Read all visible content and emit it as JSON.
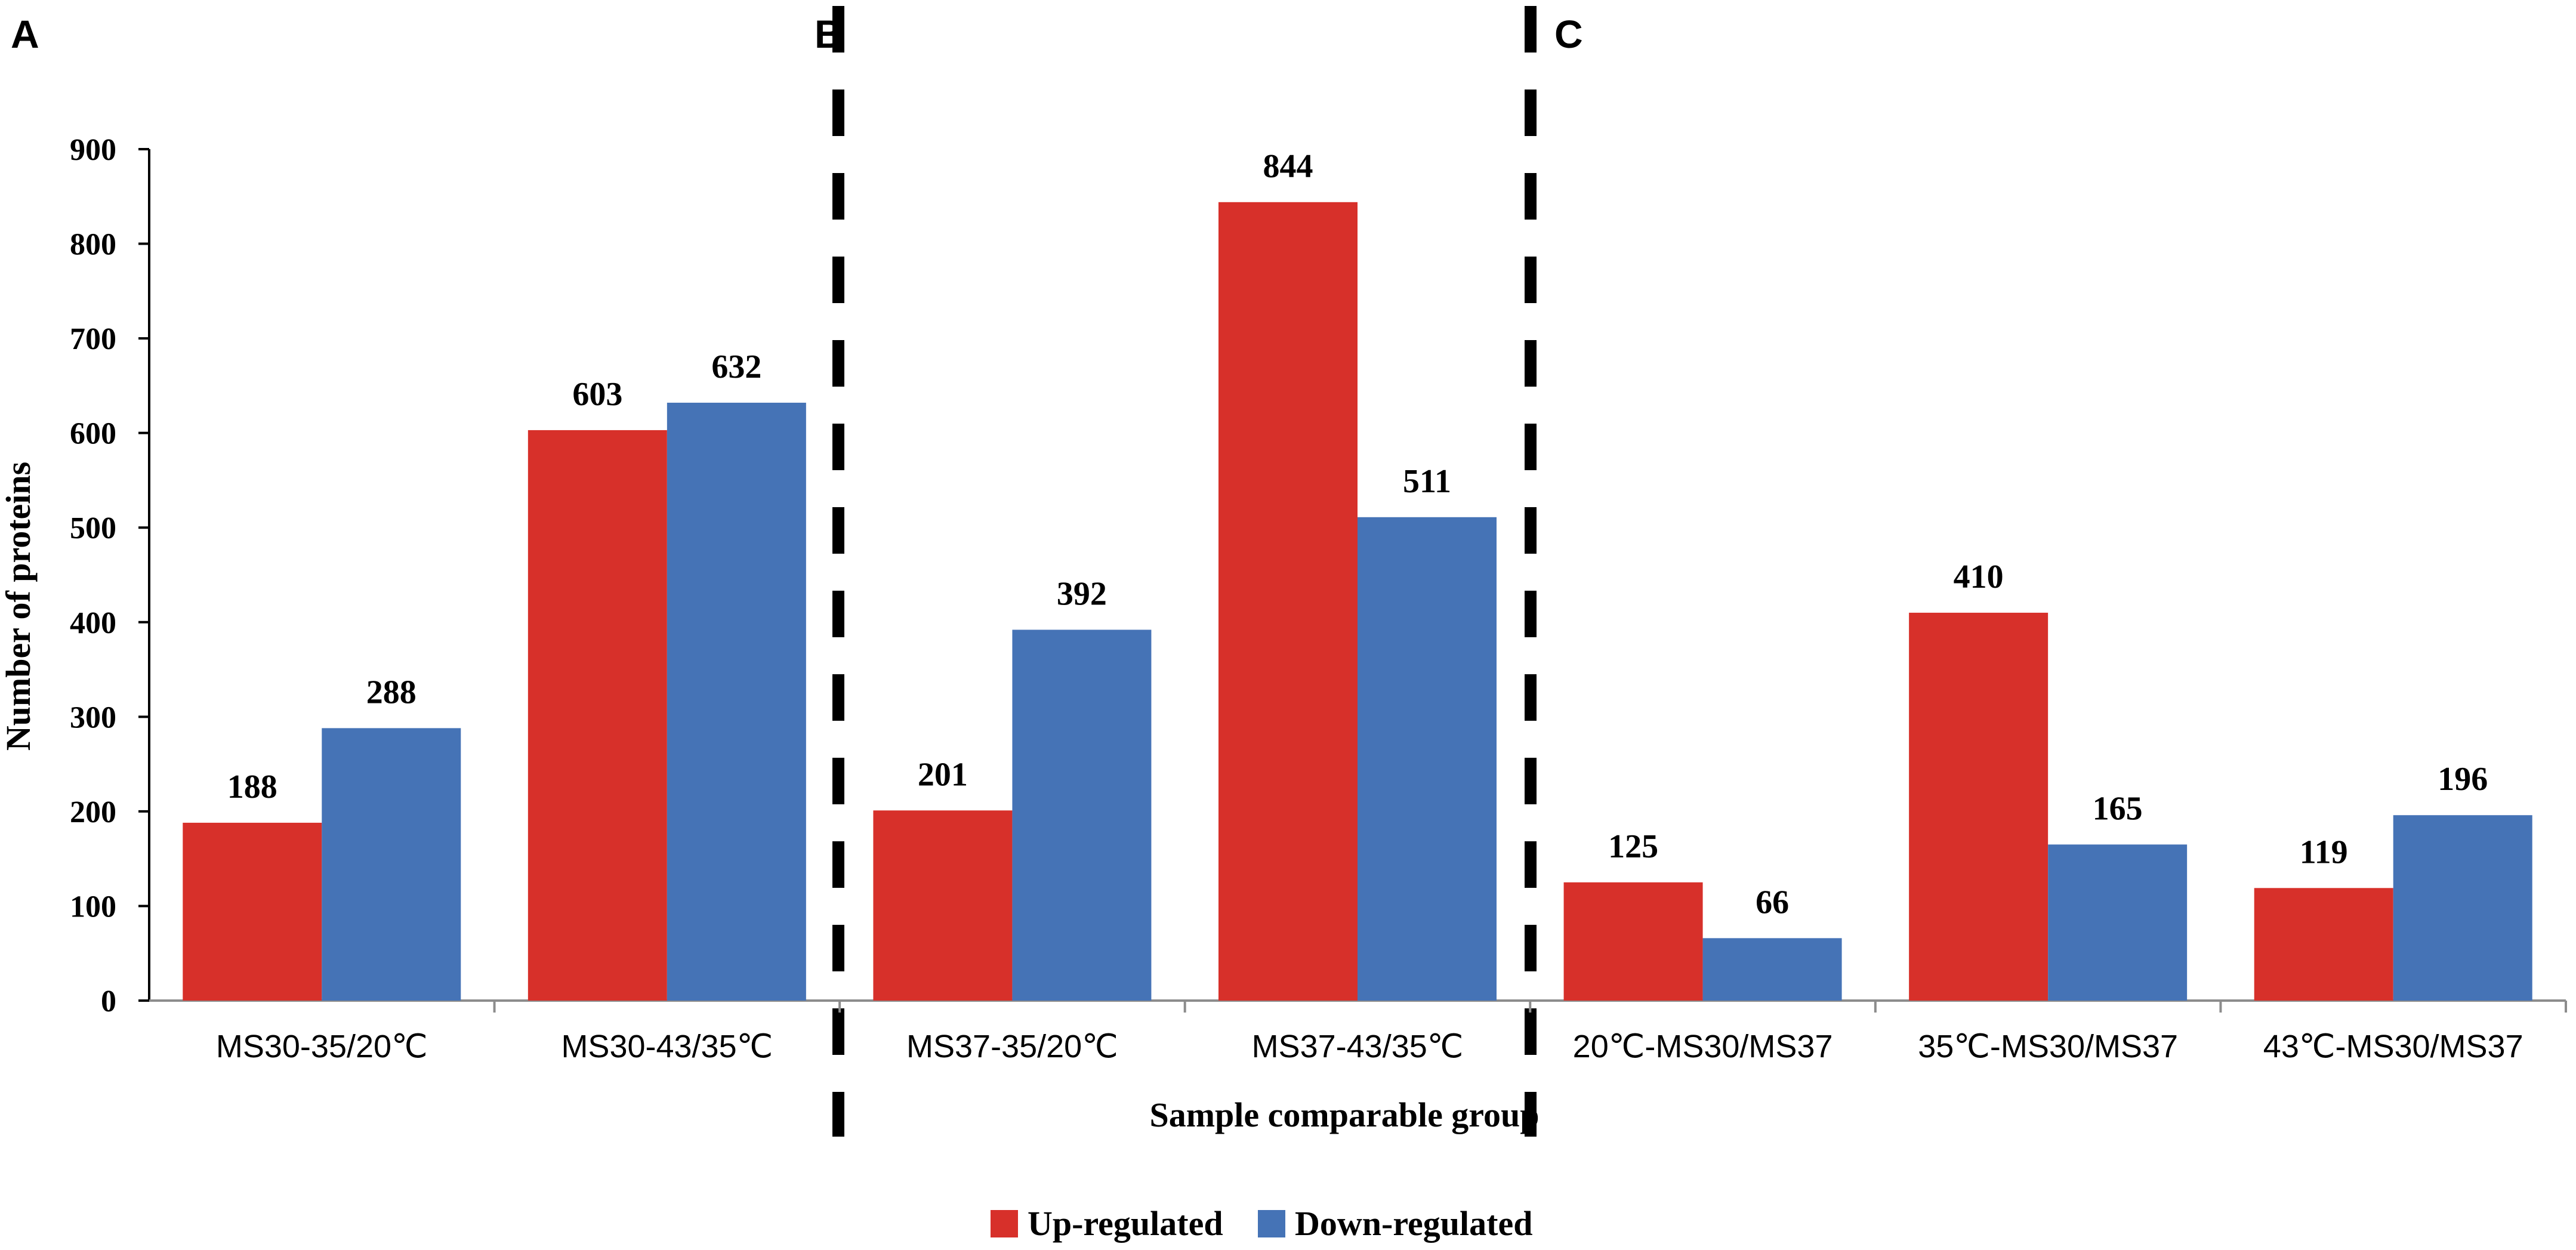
{
  "panels": [
    "A",
    "B",
    "C"
  ],
  "chart_data": {
    "type": "bar",
    "categories": [
      "MS30-35/20℃",
      "MS30-43/35℃",
      "MS37-35/20℃",
      "MS37-43/35℃",
      "20℃-MS30/MS37",
      "35℃-MS30/MS37",
      "43℃-MS30/MS37"
    ],
    "series": [
      {
        "name": "Up-regulated",
        "color": "#d7302a",
        "values": [
          188,
          603,
          201,
          844,
          125,
          410,
          119
        ]
      },
      {
        "name": "Down-regulated",
        "color": "#4573b6",
        "values": [
          288,
          632,
          392,
          511,
          66,
          165,
          196
        ]
      }
    ],
    "xlabel": "Sample comparable group",
    "ylabel": "Number of proteins",
    "ylim": [
      0,
      900
    ],
    "yticks": [
      0,
      100,
      200,
      300,
      400,
      500,
      600,
      700,
      800,
      900
    ],
    "grid": false,
    "legend": "bottom"
  }
}
